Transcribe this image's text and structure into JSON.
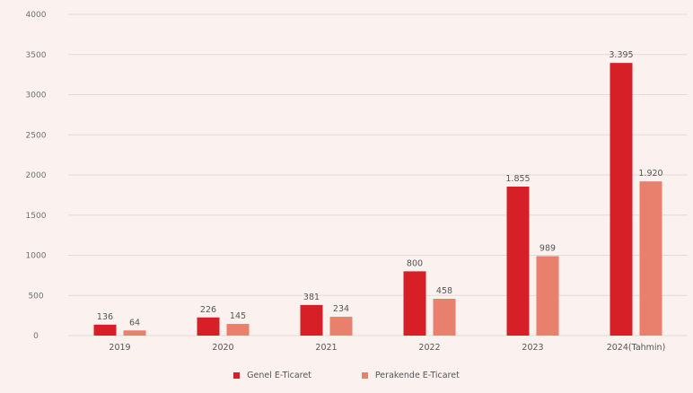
{
  "chart_data": {
    "type": "bar",
    "categories": [
      "2019",
      "2020",
      "2021",
      "2022",
      "2023",
      "2024(Tahmin)"
    ],
    "series": [
      {
        "name": "Genel E-Ticaret",
        "values": [
          136,
          226,
          381,
          800,
          1855,
          3395
        ],
        "labels": [
          "136",
          "226",
          "381",
          "800",
          "1.855",
          "3.395"
        ],
        "color": "#d61f26"
      },
      {
        "name": "Perakende E-Ticaret",
        "values": [
          64,
          145,
          234,
          458,
          989,
          1920
        ],
        "labels": [
          "64",
          "145",
          "234",
          "458",
          "989",
          "1.920"
        ],
        "color": "#e8806d"
      }
    ],
    "yticks": [
      "0",
      "500",
      "1000",
      "1500",
      "2000",
      "2500",
      "3000",
      "3500",
      "4000"
    ],
    "ylim": [
      0,
      4000
    ],
    "grid": true,
    "legend": "bottom-center"
  }
}
